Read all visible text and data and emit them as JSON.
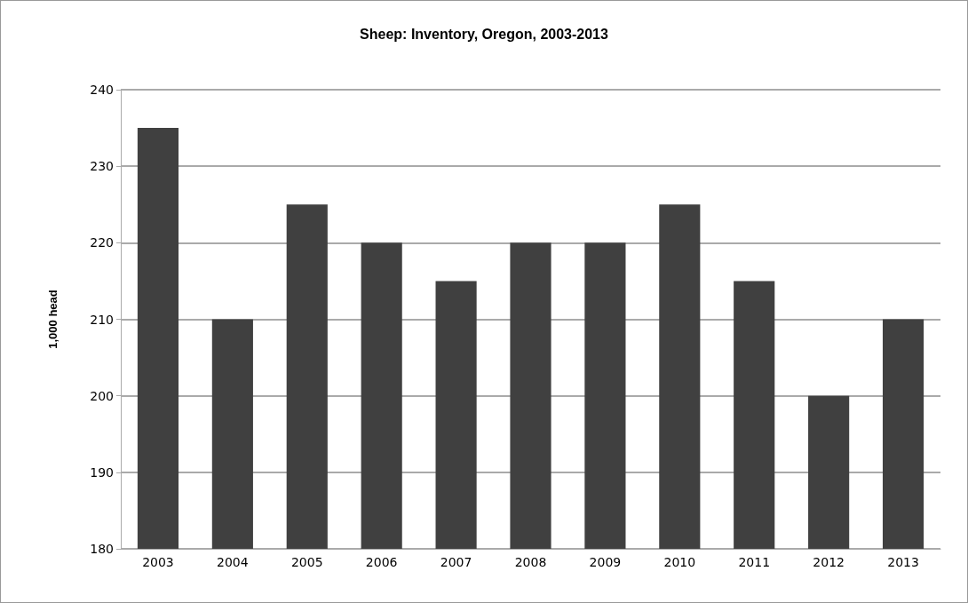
{
  "chart_data": {
    "type": "bar",
    "title": "Sheep: Inventory, Oregon, 2003-2013",
    "ylabel": "1,000 head",
    "categories": [
      "2003",
      "2004",
      "2005",
      "2006",
      "2007",
      "2008",
      "2009",
      "2010",
      "2011",
      "2012",
      "2013"
    ],
    "values": [
      235,
      210,
      225,
      220,
      215,
      220,
      220,
      225,
      215,
      200,
      210
    ],
    "color": "#404040",
    "ylim": [
      180,
      240
    ],
    "yticks": [
      180,
      190,
      200,
      210,
      220,
      230,
      240
    ],
    "grid": "y"
  }
}
